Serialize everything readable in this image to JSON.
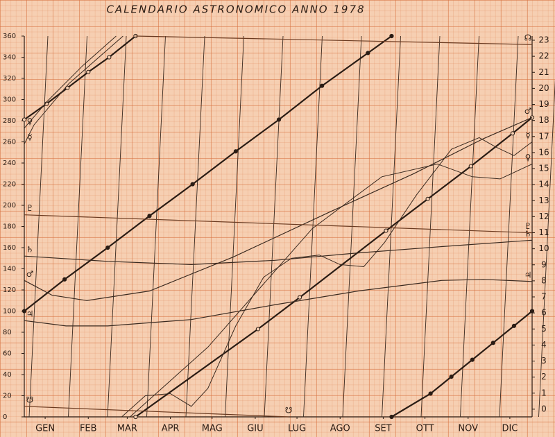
{
  "chart_data": {
    "type": "line",
    "title": "CALENDARIO ASTRONOMICO ANNO 1978",
    "xlim": [
      0,
      365
    ],
    "xticks": [
      {
        "value": 15,
        "label": "GEN"
      },
      {
        "value": 46,
        "label": "FEB"
      },
      {
        "value": 74,
        "label": "MAR"
      },
      {
        "value": 105,
        "label": "APR"
      },
      {
        "value": 135,
        "label": "MAG"
      },
      {
        "value": 166,
        "label": "GIU"
      },
      {
        "value": 196,
        "label": "LUG"
      },
      {
        "value": 227,
        "label": "AGO"
      },
      {
        "value": 258,
        "label": "SET"
      },
      {
        "value": 288,
        "label": "OTT"
      },
      {
        "value": 319,
        "label": "NOV"
      },
      {
        "value": 349,
        "label": "DIC"
      }
    ],
    "ylim": [
      0,
      360
    ],
    "yticks": [
      0,
      20,
      40,
      60,
      80,
      100,
      120,
      140,
      160,
      180,
      200,
      220,
      240,
      260,
      280,
      300,
      320,
      340,
      360
    ],
    "y2lim": [
      -0.48,
      23.26
    ],
    "y2ticks": [
      0,
      1,
      2,
      3,
      4,
      5,
      6,
      7,
      8,
      9,
      10,
      11,
      12,
      13,
      14,
      15,
      16,
      17,
      18,
      19,
      20,
      21,
      22,
      23
    ],
    "series": [
      {
        "color": "#2a1c14",
        "width": 2.2,
        "markers": "filled",
        "x": [
          0,
          29,
          60,
          90,
          121,
          152,
          183,
          214,
          247,
          264,
          264,
          264,
          292,
          307,
          322,
          337,
          352,
          365
        ],
        "values": [
          100,
          130,
          160,
          190,
          220,
          251,
          281,
          313,
          344,
          360,
          null,
          0,
          22,
          38,
          54,
          70,
          86,
          100
        ]
      },
      {
        "color": "#2a1c14",
        "width": 2.2,
        "markers": "open",
        "x": [
          0,
          16,
          31,
          46,
          61,
          80,
          80,
          80,
          168,
          198,
          260,
          290,
          321,
          351,
          365
        ],
        "values": [
          281,
          296,
          311,
          326,
          340,
          360,
          null,
          0,
          83,
          113,
          176,
          206,
          237,
          268,
          283
        ]
      },
      {
        "name": "☿",
        "color": "#3a2a20",
        "width": 1,
        "x": [
          0,
          7,
          32,
          71,
          71,
          70,
          87,
          105,
          120,
          132,
          152,
          172,
          192,
          212,
          227,
          244,
          259,
          282,
          307,
          327,
          339,
          352,
          365
        ],
        "values": [
          258,
          276,
          315,
          360,
          null,
          0,
          20,
          22,
          10,
          27,
          86,
          132,
          150,
          153,
          144,
          142,
          165,
          210,
          253,
          264,
          255,
          247,
          260
        ]
      },
      {
        "name": "♀",
        "color": "#3a2a20",
        "width": 1,
        "x": [
          0,
          17,
          42,
          66,
          66,
          76,
          132,
          207,
          257,
          297,
          322,
          342,
          365
        ],
        "values": [
          273,
          299,
          332,
          360,
          null,
          0,
          66,
          178,
          227,
          239,
          227,
          225,
          239
        ]
      },
      {
        "name": "♂",
        "color": "#3a2a20",
        "width": 1.2,
        "x": [
          0,
          20,
          45,
          90,
          150,
          220,
          280,
          330,
          365
        ],
        "values": [
          129,
          115,
          110,
          119,
          151,
          194,
          230,
          263,
          283
        ]
      },
      {
        "name": "♃",
        "color": "#3a2a20",
        "width": 1.2,
        "x": [
          0,
          30,
          60,
          120,
          180,
          240,
          300,
          330,
          365
        ],
        "values": [
          91,
          86,
          86,
          92,
          106,
          119,
          129,
          130,
          128
        ]
      },
      {
        "name": "♄",
        "color": "#3a2a20",
        "width": 1.2,
        "x": [
          0,
          60,
          120,
          180,
          240,
          300,
          365
        ],
        "values": [
          152,
          147,
          144,
          148,
          155,
          161,
          167
        ]
      },
      {
        "name": "♇",
        "color": "#6a3a20",
        "width": 1.2,
        "x": [
          0,
          365
        ],
        "values": [
          191,
          174
        ]
      },
      {
        "name": "☊",
        "color": "#6a3a20",
        "width": 1.2,
        "x": [
          80,
          365
        ],
        "values": [
          360,
          352
        ]
      },
      {
        "name": "☋",
        "color": "#6a3a20",
        "width": 1.2,
        "x": [
          0,
          190
        ],
        "values": [
          10,
          0
        ]
      }
    ]
  }
}
